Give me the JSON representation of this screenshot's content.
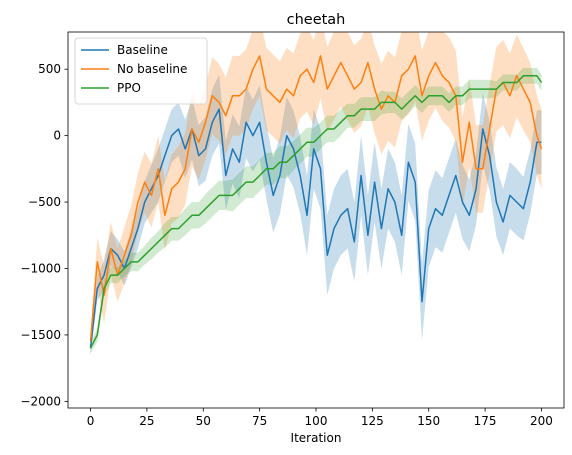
{
  "chart_data": {
    "type": "line",
    "title": "cheetah",
    "xlabel": "Iteration",
    "ylabel": "",
    "xlim": [
      -10,
      210
    ],
    "ylim": [
      -2050,
      780
    ],
    "xticks": [
      0,
      25,
      50,
      75,
      100,
      125,
      150,
      175,
      200
    ],
    "yticks": [
      -2000,
      -1500,
      -1000,
      -500,
      0,
      500
    ],
    "grid": false,
    "legend_position": "top-left",
    "shaded_band": "mean ± std",
    "series": [
      {
        "name": "Baseline",
        "color": "#1f77b4",
        "band_alpha": 0.25,
        "x": [
          0,
          3,
          6,
          9,
          12,
          15,
          18,
          21,
          24,
          27,
          30,
          33,
          36,
          39,
          42,
          45,
          48,
          51,
          54,
          57,
          60,
          63,
          66,
          69,
          72,
          75,
          78,
          81,
          84,
          87,
          90,
          93,
          96,
          99,
          102,
          105,
          108,
          111,
          114,
          117,
          120,
          123,
          126,
          129,
          132,
          135,
          138,
          141,
          144,
          147,
          150,
          153,
          156,
          159,
          162,
          165,
          168,
          171,
          174,
          177,
          180,
          183,
          186,
          189,
          192,
          195,
          198,
          200
        ],
        "mean": [
          -1600,
          -1150,
          -1050,
          -850,
          -900,
          -1000,
          -850,
          -700,
          -500,
          -400,
          -300,
          -150,
          0,
          50,
          -100,
          50,
          -150,
          -100,
          100,
          200,
          -300,
          -100,
          -200,
          100,
          0,
          100,
          -200,
          -450,
          -300,
          0,
          -100,
          -300,
          -600,
          -100,
          -250,
          -900,
          -700,
          -600,
          -550,
          -800,
          -300,
          -750,
          -350,
          -700,
          -400,
          -500,
          -750,
          -200,
          -350,
          -1250,
          -700,
          -550,
          -600,
          -450,
          -300,
          -500,
          -600,
          -400,
          50,
          -150,
          -500,
          -650,
          -450,
          -500,
          -550,
          -350,
          -50,
          -50
        ],
        "std": [
          60,
          90,
          120,
          130,
          120,
          130,
          140,
          150,
          160,
          180,
          200,
          200,
          200,
          200,
          220,
          230,
          230,
          240,
          250,
          260,
          260,
          260,
          270,
          270,
          270,
          280,
          280,
          280,
          290,
          290,
          290,
          290,
          300,
          300,
          300,
          300,
          300,
          300,
          300,
          300,
          300,
          300,
          300,
          300,
          300,
          300,
          300,
          290,
          290,
          290,
          290,
          290,
          280,
          280,
          280,
          280,
          270,
          270,
          270,
          260,
          260,
          250,
          250,
          250,
          240,
          240,
          240,
          240
        ]
      },
      {
        "name": "No baseline",
        "color": "#ff7f0e",
        "band_alpha": 0.25,
        "x": [
          0,
          3,
          6,
          9,
          12,
          15,
          18,
          21,
          24,
          27,
          30,
          33,
          36,
          39,
          42,
          45,
          48,
          51,
          54,
          57,
          60,
          63,
          66,
          69,
          72,
          75,
          78,
          81,
          84,
          87,
          90,
          93,
          96,
          99,
          102,
          105,
          108,
          111,
          114,
          117,
          120,
          123,
          126,
          129,
          132,
          135,
          138,
          141,
          144,
          147,
          150,
          153,
          156,
          159,
          162,
          165,
          168,
          171,
          174,
          177,
          180,
          183,
          186,
          189,
          192,
          195,
          198,
          200
        ],
        "mean": [
          -1550,
          -950,
          -1200,
          -850,
          -1050,
          -900,
          -750,
          -500,
          -350,
          -450,
          -250,
          -600,
          -400,
          -350,
          -250,
          50,
          -50,
          100,
          300,
          250,
          150,
          300,
          300,
          350,
          500,
          600,
          350,
          300,
          250,
          350,
          300,
          450,
          500,
          400,
          600,
          350,
          450,
          550,
          450,
          350,
          400,
          550,
          350,
          200,
          300,
          250,
          450,
          500,
          600,
          300,
          450,
          550,
          450,
          400,
          300,
          -200,
          100,
          -250,
          -250,
          50,
          350,
          400,
          300,
          450,
          350,
          250,
          0,
          -100
        ],
        "std": [
          70,
          180,
          220,
          200,
          200,
          210,
          220,
          220,
          230,
          240,
          250,
          260,
          260,
          270,
          270,
          280,
          280,
          280,
          290,
          290,
          290,
          300,
          300,
          300,
          300,
          300,
          310,
          310,
          310,
          310,
          320,
          320,
          320,
          320,
          320,
          320,
          330,
          330,
          330,
          330,
          330,
          330,
          330,
          340,
          340,
          340,
          340,
          340,
          340,
          340,
          340,
          340,
          340,
          340,
          340,
          340,
          330,
          330,
          330,
          330,
          320,
          320,
          320,
          310,
          310,
          300,
          300,
          300
        ]
      },
      {
        "name": "PPO",
        "color": "#2ca02c",
        "band_alpha": 0.22,
        "x": [
          0,
          3,
          6,
          9,
          12,
          15,
          18,
          21,
          24,
          27,
          30,
          33,
          36,
          39,
          42,
          45,
          48,
          51,
          54,
          57,
          60,
          63,
          66,
          69,
          72,
          75,
          78,
          81,
          84,
          87,
          90,
          93,
          96,
          99,
          102,
          105,
          108,
          111,
          114,
          117,
          120,
          123,
          126,
          129,
          132,
          135,
          138,
          141,
          144,
          147,
          150,
          153,
          156,
          159,
          162,
          165,
          168,
          171,
          174,
          177,
          180,
          183,
          186,
          189,
          192,
          195,
          198,
          200
        ],
        "mean": [
          -1600,
          -1500,
          -1150,
          -1050,
          -1050,
          -1000,
          -950,
          -950,
          -900,
          -850,
          -800,
          -750,
          -700,
          -700,
          -650,
          -600,
          -600,
          -550,
          -500,
          -450,
          -450,
          -450,
          -400,
          -350,
          -350,
          -300,
          -250,
          -250,
          -200,
          -200,
          -150,
          -100,
          -50,
          -50,
          0,
          50,
          50,
          100,
          150,
          150,
          200,
          200,
          200,
          250,
          250,
          250,
          200,
          250,
          300,
          250,
          300,
          300,
          300,
          250,
          300,
          300,
          350,
          350,
          350,
          350,
          350,
          400,
          400,
          400,
          450,
          450,
          450,
          400
        ],
        "std": [
          40,
          50,
          60,
          60,
          60,
          60,
          70,
          70,
          70,
          80,
          80,
          90,
          90,
          90,
          100,
          100,
          100,
          110,
          110,
          110,
          110,
          120,
          120,
          120,
          120,
          120,
          120,
          120,
          120,
          120,
          110,
          110,
          110,
          110,
          100,
          100,
          100,
          100,
          90,
          90,
          90,
          90,
          90,
          90,
          80,
          80,
          80,
          80,
          80,
          80,
          70,
          70,
          70,
          70,
          70,
          70,
          70,
          70,
          70,
          70,
          60,
          60,
          60,
          60,
          60,
          60,
          60,
          60
        ]
      }
    ]
  }
}
